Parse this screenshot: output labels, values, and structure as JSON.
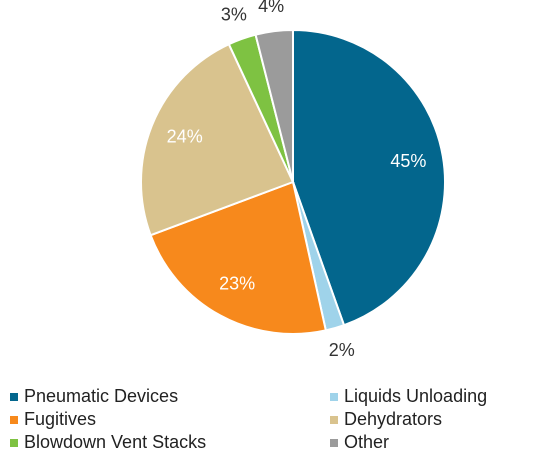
{
  "chart_data": {
    "type": "pie",
    "categories": [
      "Pneumatic Devices",
      "Liquids Unloading",
      "Fugitives",
      "Dehydrators",
      "Blowdown Vent Stacks",
      "Other"
    ],
    "values": [
      45,
      2,
      23,
      24,
      3,
      4
    ],
    "value_labels": [
      "45%",
      "2%",
      "23%",
      "24%",
      "3%",
      "4%"
    ],
    "colors": [
      "#03668d",
      "#9fd3ea",
      "#f7891c",
      "#d9c38e",
      "#7ec242",
      "#9b9b9b"
    ],
    "legend": "bottom"
  }
}
